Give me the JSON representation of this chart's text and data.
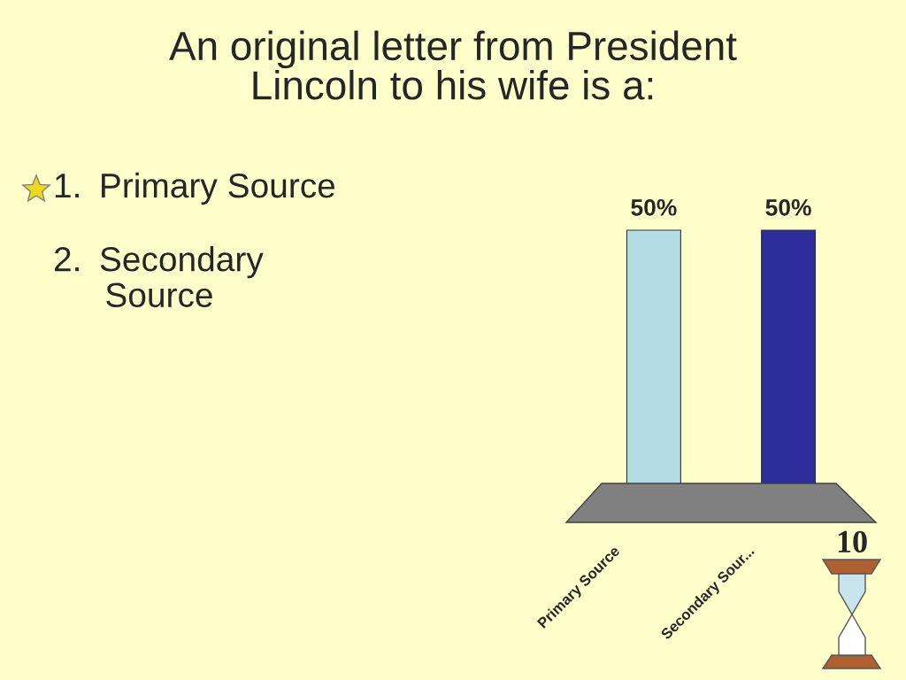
{
  "chart_data": {
    "type": "bar",
    "title": "An original letter from President\nLincoln to his wife is a:",
    "categories": [
      "Primary Source",
      "Secondary Sour..."
    ],
    "values": [
      50,
      50
    ],
    "colors": [
      "#b4dce4",
      "#2c2c9c"
    ],
    "value_labels": [
      "50%",
      "50%"
    ],
    "annotations": [
      "1. Primary Source",
      "2. Secondary\n  Source",
      "10"
    ]
  }
}
